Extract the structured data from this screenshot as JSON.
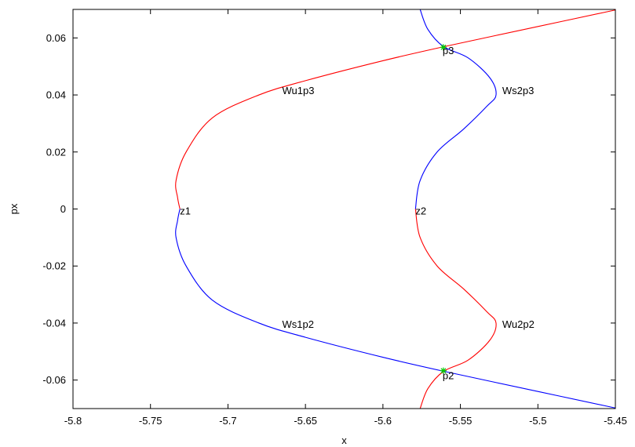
{
  "chart_data": {
    "type": "line",
    "title": "",
    "xlabel": "x",
    "ylabel": "px",
    "xlim": [
      -5.8,
      -5.45
    ],
    "ylim": [
      -0.07,
      0.07
    ],
    "grid": false,
    "legend": "none",
    "xticks": [
      {
        "value": -5.8,
        "label": "-5.8"
      },
      {
        "value": -5.75,
        "label": "-5.75"
      },
      {
        "value": -5.7,
        "label": "-5.7"
      },
      {
        "value": -5.65,
        "label": "-5.65"
      },
      {
        "value": -5.6,
        "label": "-5.6"
      },
      {
        "value": -5.55,
        "label": "-5.55"
      },
      {
        "value": -5.5,
        "label": "-5.5"
      },
      {
        "value": -5.45,
        "label": "-5.45"
      }
    ],
    "yticks": [
      {
        "value": 0.06,
        "label": "0.06"
      },
      {
        "value": 0.04,
        "label": "0.04"
      },
      {
        "value": 0.02,
        "label": "0.02"
      },
      {
        "value": 0,
        "label": "0"
      },
      {
        "value": -0.02,
        "label": "-0.02"
      },
      {
        "value": -0.04,
        "label": "-0.04"
      },
      {
        "value": -0.06,
        "label": "-0.06"
      }
    ],
    "series": [
      {
        "color": "#ff0000",
        "x": [
          -5.45,
          -5.5,
          -5.56,
          -5.6,
          -5.65,
          -5.68,
          -5.71,
          -5.727,
          -5.7335,
          -5.7325,
          -5.731
        ],
        "y": [
          0.0698,
          0.064,
          0.057,
          0.052,
          0.045,
          0.04,
          0.032,
          0.02,
          0.01,
          0.004,
          0.0
        ]
      },
      {
        "color": "#0000ff",
        "x": [
          -5.731,
          -5.7325,
          -5.7335,
          -5.727,
          -5.71,
          -5.68,
          -5.65,
          -5.6,
          -5.56,
          -5.5,
          -5.45
        ],
        "y": [
          0.0,
          -0.004,
          -0.01,
          -0.02,
          -0.032,
          -0.04,
          -0.045,
          -0.052,
          -0.057,
          -0.064,
          -0.0698
        ]
      },
      {
        "color": "#0000ff",
        "x": [
          -5.579,
          -5.576,
          -5.565,
          -5.548,
          -5.533,
          -5.527,
          -5.531,
          -5.545,
          -5.561,
          -5.571,
          -5.576
        ],
        "y": [
          0.0,
          0.01,
          0.02,
          0.028,
          0.036,
          0.04,
          0.046,
          0.053,
          0.057,
          0.063,
          0.07
        ]
      },
      {
        "color": "#ff0000",
        "x": [
          -5.579,
          -5.576,
          -5.565,
          -5.548,
          -5.533,
          -5.527,
          -5.531,
          -5.545,
          -5.561,
          -5.571,
          -5.576
        ],
        "y": [
          0.0,
          -0.01,
          -0.02,
          -0.028,
          -0.036,
          -0.04,
          -0.046,
          -0.053,
          -0.057,
          -0.063,
          -0.07
        ]
      }
    ],
    "markers": [
      {
        "x": -5.561,
        "y": 0.0567,
        "color": "#00cc00"
      },
      {
        "x": -5.561,
        "y": -0.0567,
        "color": "#00cc00"
      }
    ],
    "annotations": [
      {
        "text": "Wu1p3",
        "x": -5.665,
        "y": 0.0415
      },
      {
        "text": "Ws2p3",
        "x": -5.523,
        "y": 0.0415
      },
      {
        "text": "z1",
        "x": -5.731,
        "y": -0.0007
      },
      {
        "text": "z2",
        "x": -5.579,
        "y": -0.0007
      },
      {
        "text": "Ws1p2",
        "x": -5.665,
        "y": -0.0405
      },
      {
        "text": "Wu2p2",
        "x": -5.523,
        "y": -0.0405
      },
      {
        "text": "p3",
        "x": -5.5615,
        "y": 0.0555
      },
      {
        "text": "p2",
        "x": -5.5615,
        "y": -0.0585
      }
    ]
  }
}
